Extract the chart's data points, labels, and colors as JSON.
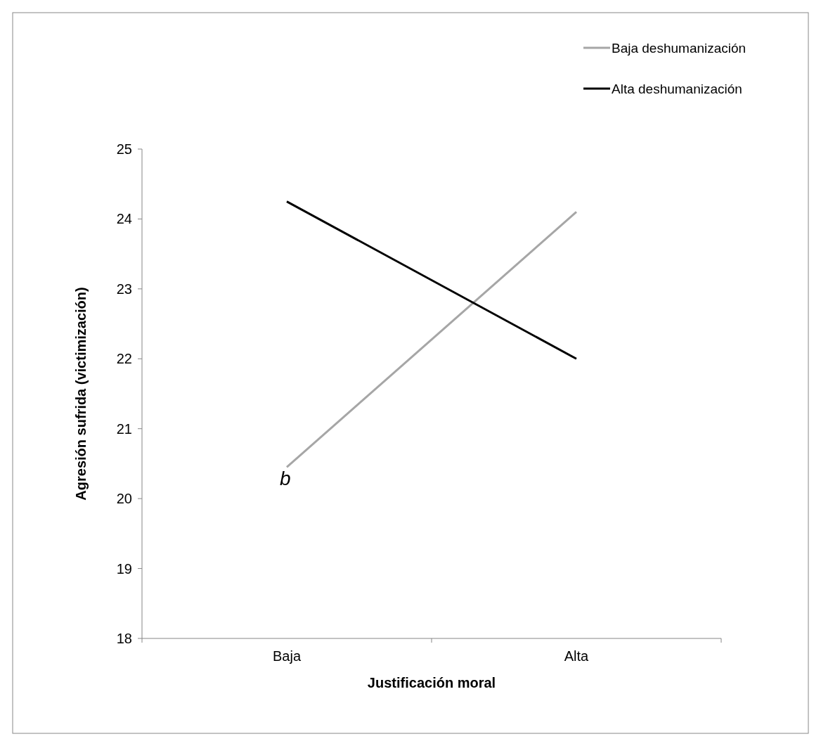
{
  "chart_data": {
    "type": "line",
    "xlabel": "Justificación moral",
    "ylabel": "Agresión sufrida (victimización)",
    "categories": [
      "Baja",
      "Alta"
    ],
    "series": [
      {
        "name": "Baja deshumanización",
        "color": "#a6a6a6",
        "values": [
          20.45,
          24.1
        ]
      },
      {
        "name": "Alta deshumanización",
        "color": "#000000",
        "values": [
          24.25,
          22.0
        ]
      }
    ],
    "ylim": [
      18,
      25
    ],
    "yticks": [
      18,
      19,
      20,
      21,
      22,
      23,
      24,
      25
    ],
    "grid": false,
    "legend": "top right",
    "marker": "none",
    "line_style": "solid",
    "annotations": [
      "b"
    ]
  }
}
